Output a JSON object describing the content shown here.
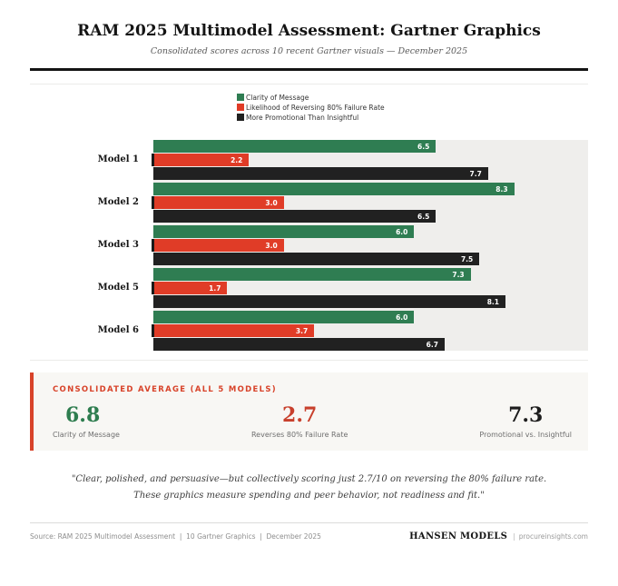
{
  "header": {
    "title": "RAM 2025 Multimodel Assessment: Gartner Graphics",
    "subtitle": "Consolidated scores across 10 recent Gartner visuals — December 2025"
  },
  "colors": {
    "clarity_green": "#2F7D52",
    "failure_red": "#E03C27",
    "promotional_black": "#212121",
    "plot_background": "#EFEEEC",
    "panel_accent_red": "#D8432A"
  },
  "chart_data": {
    "type": "bar",
    "orientation": "horizontal",
    "title": "RAM 2025 Multimodel Assessment: Gartner Graphics",
    "categories": [
      "Model 1",
      "Model 2",
      "Model 3",
      "Model 5",
      "Model 6"
    ],
    "series": [
      {
        "name": "Clarity of Message",
        "color": "#2F7D52",
        "values": [
          6.5,
          8.3,
          6.0,
          7.3,
          6.0
        ]
      },
      {
        "name": "Likelihood of Reversing 80% Failure Rate",
        "color": "#E03C27",
        "values": [
          2.2,
          3.0,
          3.0,
          1.7,
          3.7
        ]
      },
      {
        "name": "More Promotional Than Insightful",
        "color": "#212121",
        "values": [
          7.7,
          6.5,
          7.5,
          8.1,
          6.7
        ]
      }
    ],
    "xlim": [
      0,
      10
    ],
    "value_labels": true,
    "legend_position": "top-center",
    "grid": false
  },
  "summary": {
    "title": "CONSOLIDATED AVERAGE (ALL 5 MODELS)",
    "stats": [
      {
        "value": "6.8",
        "label": "Clarity of Message",
        "color": "#2E7D4F"
      },
      {
        "value": "2.7",
        "label": "Reverses 80% Failure Rate",
        "color": "#C8402C"
      },
      {
        "value": "7.3",
        "label": "Promotional vs. Insightful",
        "color": "#1D1D1D"
      }
    ]
  },
  "quote": {
    "line1": "\"Clear, polished, and persuasive—but collectively scoring just 2.7/10 on reversing the 80% failure rate.",
    "line2": "These graphics measure spending and peer behavior, not readiness and fit.\""
  },
  "footer": {
    "source": "Source: RAM 2025 Multimodel Assessment  |  10 Gartner Graphics  |  December 2025",
    "brand": "HANSEN MODELS",
    "separator": "|",
    "site": "procureinsights.com"
  }
}
